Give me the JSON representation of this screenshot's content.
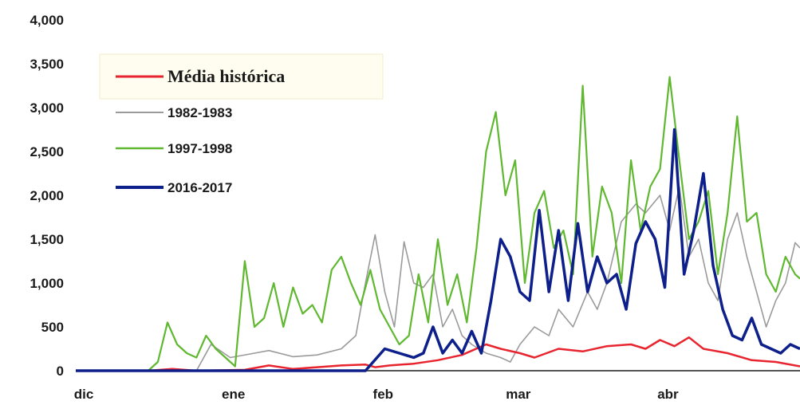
{
  "chart_data": {
    "type": "line",
    "title": "",
    "xlabel": "",
    "ylabel": "",
    "ylim": [
      0,
      4000
    ],
    "y_ticks": [
      "0",
      "500",
      "1,000",
      "1,500",
      "2,000",
      "2,500",
      "3,000",
      "3,500",
      "4,000"
    ],
    "x_ticks": [
      "dic",
      "ene",
      "feb",
      "mar",
      "abr"
    ],
    "x_range_days": [
      0,
      150
    ],
    "x_tick_days": [
      0,
      31,
      62,
      90,
      121
    ],
    "grid": false,
    "legend_placement": "top-left",
    "series": [
      {
        "name": "Média histórica",
        "color": "#e8242f",
        "points": [
          [
            0,
            0
          ],
          [
            15,
            0
          ],
          [
            20,
            20
          ],
          [
            25,
            0
          ],
          [
            35,
            10
          ],
          [
            40,
            60
          ],
          [
            45,
            20
          ],
          [
            50,
            40
          ],
          [
            55,
            60
          ],
          [
            60,
            70
          ],
          [
            62,
            40
          ],
          [
            65,
            60
          ],
          [
            70,
            80
          ],
          [
            75,
            120
          ],
          [
            80,
            180
          ],
          [
            85,
            300
          ],
          [
            88,
            250
          ],
          [
            92,
            200
          ],
          [
            95,
            150
          ],
          [
            100,
            250
          ],
          [
            105,
            220
          ],
          [
            110,
            280
          ],
          [
            115,
            300
          ],
          [
            118,
            250
          ],
          [
            121,
            350
          ],
          [
            124,
            280
          ],
          [
            127,
            380
          ],
          [
            130,
            250
          ],
          [
            135,
            200
          ],
          [
            140,
            120
          ],
          [
            145,
            100
          ],
          [
            150,
            50
          ]
        ]
      },
      {
        "name": "1982-1983",
        "color": "#9a9a9a",
        "points": [
          [
            0,
            0
          ],
          [
            25,
            0
          ],
          [
            28,
            300
          ],
          [
            32,
            150
          ],
          [
            37,
            200
          ],
          [
            40,
            230
          ],
          [
            45,
            160
          ],
          [
            50,
            180
          ],
          [
            55,
            250
          ],
          [
            58,
            400
          ],
          [
            60,
            1000
          ],
          [
            62,
            1550
          ],
          [
            64,
            900
          ],
          [
            66,
            500
          ],
          [
            68,
            1470
          ],
          [
            70,
            1000
          ],
          [
            72,
            950
          ],
          [
            74,
            1100
          ],
          [
            76,
            500
          ],
          [
            78,
            700
          ],
          [
            80,
            400
          ],
          [
            82,
            300
          ],
          [
            85,
            200
          ],
          [
            88,
            150
          ],
          [
            90,
            100
          ],
          [
            92,
            300
          ],
          [
            95,
            500
          ],
          [
            98,
            400
          ],
          [
            100,
            700
          ],
          [
            103,
            500
          ],
          [
            106,
            900
          ],
          [
            108,
            700
          ],
          [
            110,
            1000
          ],
          [
            113,
            1700
          ],
          [
            116,
            1900
          ],
          [
            118,
            1800
          ],
          [
            121,
            2000
          ],
          [
            123,
            1600
          ],
          [
            125,
            2100
          ],
          [
            127,
            1300
          ],
          [
            129,
            1500
          ],
          [
            131,
            1000
          ],
          [
            133,
            800
          ],
          [
            135,
            1500
          ],
          [
            137,
            1800
          ],
          [
            139,
            1300
          ],
          [
            141,
            900
          ],
          [
            143,
            500
          ],
          [
            145,
            800
          ],
          [
            147,
            1000
          ],
          [
            149,
            1460
          ],
          [
            150,
            1400
          ]
        ]
      },
      {
        "name": "1997-1998",
        "color": "#5fb830",
        "points": [
          [
            0,
            0
          ],
          [
            15,
            0
          ],
          [
            17,
            100
          ],
          [
            19,
            550
          ],
          [
            21,
            300
          ],
          [
            23,
            200
          ],
          [
            25,
            150
          ],
          [
            27,
            400
          ],
          [
            29,
            250
          ],
          [
            31,
            150
          ],
          [
            33,
            50
          ],
          [
            35,
            1250
          ],
          [
            37,
            500
          ],
          [
            39,
            600
          ],
          [
            41,
            1000
          ],
          [
            43,
            500
          ],
          [
            45,
            950
          ],
          [
            47,
            650
          ],
          [
            49,
            750
          ],
          [
            51,
            550
          ],
          [
            53,
            1150
          ],
          [
            55,
            1300
          ],
          [
            57,
            1000
          ],
          [
            59,
            750
          ],
          [
            61,
            1150
          ],
          [
            63,
            700
          ],
          [
            65,
            500
          ],
          [
            67,
            300
          ],
          [
            69,
            400
          ],
          [
            71,
            1100
          ],
          [
            73,
            550
          ],
          [
            75,
            1500
          ],
          [
            77,
            750
          ],
          [
            79,
            1100
          ],
          [
            81,
            550
          ],
          [
            83,
            1400
          ],
          [
            85,
            2500
          ],
          [
            87,
            2950
          ],
          [
            89,
            2000
          ],
          [
            91,
            2400
          ],
          [
            93,
            1000
          ],
          [
            95,
            1800
          ],
          [
            97,
            2050
          ],
          [
            99,
            1400
          ],
          [
            101,
            1600
          ],
          [
            103,
            1100
          ],
          [
            105,
            3250
          ],
          [
            107,
            1300
          ],
          [
            109,
            2100
          ],
          [
            111,
            1800
          ],
          [
            113,
            1000
          ],
          [
            115,
            2400
          ],
          [
            117,
            1600
          ],
          [
            119,
            2100
          ],
          [
            121,
            2300
          ],
          [
            123,
            3350
          ],
          [
            125,
            2400
          ],
          [
            127,
            1500
          ],
          [
            129,
            1700
          ],
          [
            131,
            2050
          ],
          [
            133,
            1100
          ],
          [
            135,
            1800
          ],
          [
            137,
            2900
          ],
          [
            139,
            1700
          ],
          [
            141,
            1800
          ],
          [
            143,
            1100
          ],
          [
            145,
            900
          ],
          [
            147,
            1300
          ],
          [
            149,
            1100
          ],
          [
            150,
            1050
          ]
        ]
      },
      {
        "name": "2016-2017",
        "color": "#0d1f8a",
        "points": [
          [
            0,
            0
          ],
          [
            60,
            0
          ],
          [
            64,
            250
          ],
          [
            67,
            200
          ],
          [
            70,
            150
          ],
          [
            72,
            200
          ],
          [
            74,
            500
          ],
          [
            76,
            200
          ],
          [
            78,
            350
          ],
          [
            80,
            200
          ],
          [
            82,
            450
          ],
          [
            84,
            200
          ],
          [
            86,
            800
          ],
          [
            88,
            1500
          ],
          [
            90,
            1300
          ],
          [
            92,
            900
          ],
          [
            94,
            800
          ],
          [
            96,
            1830
          ],
          [
            98,
            900
          ],
          [
            100,
            1600
          ],
          [
            102,
            800
          ],
          [
            104,
            1680
          ],
          [
            106,
            900
          ],
          [
            108,
            1300
          ],
          [
            110,
            1000
          ],
          [
            112,
            1100
          ],
          [
            114,
            700
          ],
          [
            116,
            1450
          ],
          [
            118,
            1700
          ],
          [
            120,
            1500
          ],
          [
            122,
            950
          ],
          [
            124,
            2750
          ],
          [
            126,
            1100
          ],
          [
            128,
            1600
          ],
          [
            130,
            2250
          ],
          [
            132,
            1200
          ],
          [
            134,
            700
          ],
          [
            136,
            400
          ],
          [
            138,
            350
          ],
          [
            140,
            600
          ],
          [
            142,
            300
          ],
          [
            144,
            250
          ],
          [
            146,
            200
          ],
          [
            148,
            300
          ],
          [
            150,
            250
          ]
        ]
      }
    ],
    "legend": [
      "Média histórica",
      "1982-1983",
      "1997-1998",
      "2016-2017"
    ]
  }
}
